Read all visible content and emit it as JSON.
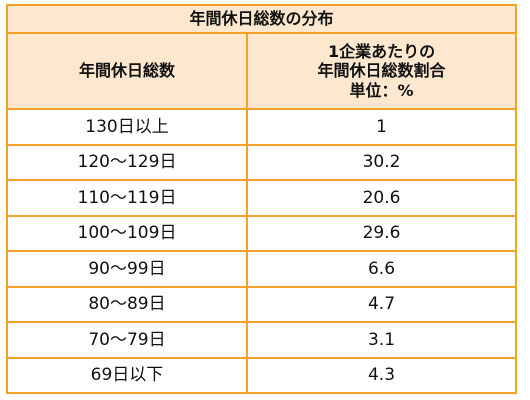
{
  "chart_data": {
    "type": "table",
    "title": "年間休日総数の分布",
    "columns": [
      "年間休日総数",
      "1企業あたりの\n年間休日総数割合\n単位：%"
    ],
    "header_col2_lines": [
      "1企業あたりの",
      "年間休日総数割合",
      "単位：%"
    ],
    "categories": [
      "130日以上",
      "120～129日",
      "110～119日",
      "100～109日",
      "90～99日",
      "80～89日",
      "70～79日",
      "69日以下"
    ],
    "values": [
      "1",
      "30.2",
      "20.6",
      "29.6",
      "6.6",
      "4.7",
      "3.1",
      "4.3"
    ]
  },
  "colors": {
    "border": "#f4a12a",
    "header_fill": "#fde8cf",
    "text": "#111111"
  }
}
